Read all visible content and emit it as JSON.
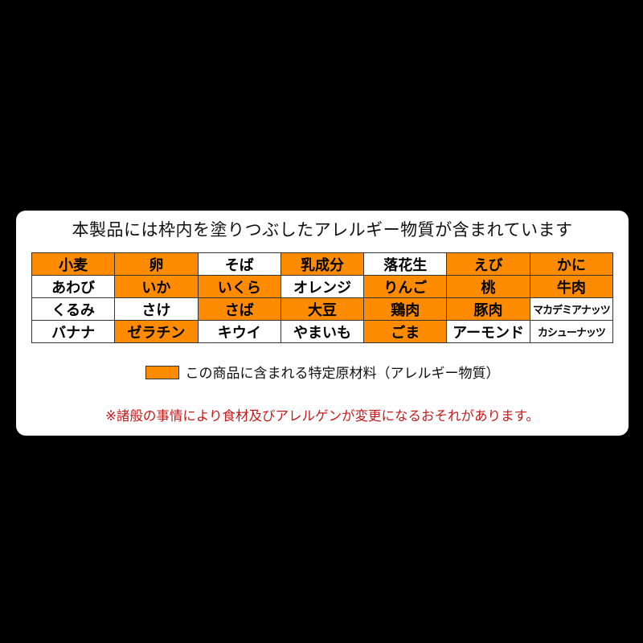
{
  "title": "本製品には枠内を塗りつぶしたアレルギー物質が含まれています",
  "colors": {
    "highlight": "#ff8c00",
    "note": "#c41a1a"
  },
  "allergens": [
    [
      {
        "name": "小麦",
        "included": true
      },
      {
        "name": "卵",
        "included": true
      },
      {
        "name": "そば",
        "included": false
      },
      {
        "name": "乳成分",
        "included": true
      },
      {
        "name": "落花生",
        "included": false
      },
      {
        "name": "えび",
        "included": true
      },
      {
        "name": "かに",
        "included": true
      }
    ],
    [
      {
        "name": "あわび",
        "included": false
      },
      {
        "name": "いか",
        "included": true
      },
      {
        "name": "いくら",
        "included": true
      },
      {
        "name": "オレンジ",
        "included": false
      },
      {
        "name": "りんご",
        "included": true
      },
      {
        "name": "桃",
        "included": true
      },
      {
        "name": "牛肉",
        "included": true
      }
    ],
    [
      {
        "name": "くるみ",
        "included": false
      },
      {
        "name": "さけ",
        "included": false
      },
      {
        "name": "さば",
        "included": true
      },
      {
        "name": "大豆",
        "included": true
      },
      {
        "name": "鶏肉",
        "included": true
      },
      {
        "name": "豚肉",
        "included": true
      },
      {
        "name": "マカデミアナッツ",
        "included": false
      }
    ],
    [
      {
        "name": "バナナ",
        "included": false
      },
      {
        "name": "ゼラチン",
        "included": true
      },
      {
        "name": "キウイ",
        "included": false
      },
      {
        "name": "やまいも",
        "included": false
      },
      {
        "name": "ごま",
        "included": true
      },
      {
        "name": "アーモンド",
        "included": false
      },
      {
        "name": "カシューナッツ",
        "included": false
      }
    ]
  ],
  "legend": "この商品に含まれる特定原材料（アレルギー物質）",
  "note": "※諸般の事情により食材及びアレルゲンが変更になるおそれがあります。"
}
